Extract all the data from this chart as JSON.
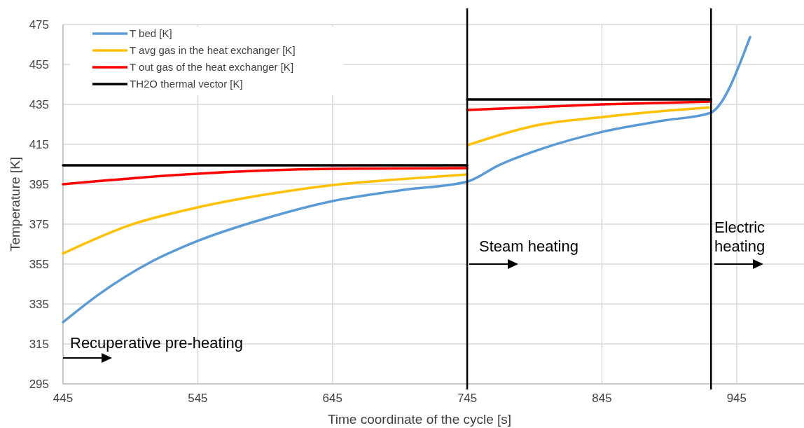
{
  "chart_data": {
    "type": "line",
    "xlabel": "Time coordinate of the cycle [s]",
    "ylabel": "Temperature [K]",
    "xlim": [
      445,
      995
    ],
    "xticks": [
      445,
      545,
      645,
      745,
      845,
      945
    ],
    "ylim": [
      295,
      475
    ],
    "yticks": [
      295,
      315,
      335,
      355,
      375,
      395,
      415,
      435,
      455,
      475
    ],
    "grid": true,
    "legend": "top left",
    "marker": "none",
    "line_style": "solid",
    "series": [
      {
        "name": "T bed [K]",
        "color": "#5b9bd5",
        "x": [
          445,
          471.5,
          511.4,
          545,
          594.9,
          644,
          698,
          745,
          769,
          800,
          845,
          891,
          925,
          955
        ],
        "values": [
          325.9,
          339.8,
          356.5,
          366.6,
          377.8,
          386.4,
          392.2,
          396.3,
          404.7,
          412.7,
          421.2,
          426.9,
          430.6,
          468.7
        ]
      },
      {
        "name": "T avg gas in the heat exchanger [K]",
        "color": "#ffc000",
        "x": [
          445,
          495,
          545,
          595,
          645,
          695,
          745
        ],
        "values": [
          360.3,
          374.6,
          383.4,
          389.8,
          394.6,
          397.5,
          399.9
        ]
      },
      {
        "name": "T out gas of the heat exchanger [K]",
        "color": "#ff0000",
        "x": [
          445,
          545,
          645,
          745
        ],
        "values": [
          395,
          400.3,
          402.7,
          403.1
        ]
      },
      {
        "name": "TH2O thermal vector [K]",
        "color": "#000000",
        "x": [
          445,
          745
        ],
        "values": [
          404.5,
          404.5
        ]
      },
      {
        "color": "#ffc000",
        "x": [
          745,
          795,
          845,
          895,
          926
        ],
        "values": [
          414.5,
          424.3,
          428.6,
          431.9,
          433.5
        ]
      },
      {
        "color": "#ff0000",
        "x": [
          745,
          845,
          926
        ],
        "values": [
          432.2,
          435,
          436.4
        ]
      },
      {
        "color": "#000000",
        "x": [
          745,
          926
        ],
        "values": [
          437.5,
          437.5
        ]
      }
    ],
    "ref_lines": [
      {
        "axis": "x",
        "value": 745,
        "color": "#000000"
      },
      {
        "axis": "x",
        "value": 926,
        "color": "#000000"
      }
    ],
    "annotations": [
      "Recuperative pre-heating",
      "Steam heating",
      "Electric heating"
    ]
  }
}
